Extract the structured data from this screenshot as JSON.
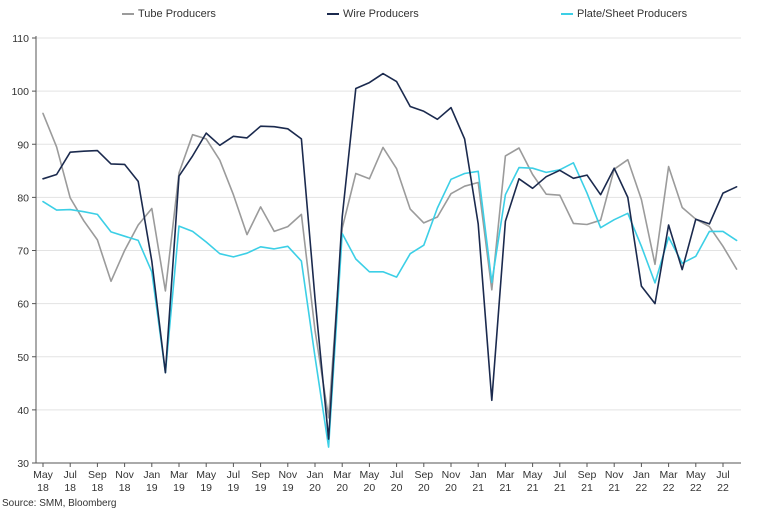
{
  "legend": {
    "tube_label": "Tube Producers",
    "wire_label": "Wire Producers",
    "plate_label": "Plate/Sheet Producers"
  },
  "source": "Source: SMM, Bloomberg",
  "colors": {
    "tube": "#9b9b9b",
    "wire": "#1b2a4e",
    "plate": "#3ccfe6",
    "axis": "#555555",
    "grid": "#e3e3e3"
  },
  "chart_data": {
    "type": "line",
    "title": "",
    "xlabel": "",
    "ylabel": "",
    "ylim": [
      30,
      110
    ],
    "yticks": [
      30,
      40,
      50,
      60,
      70,
      80,
      90,
      100,
      110
    ],
    "grid": true,
    "legend_position": "top",
    "x": [
      "May 2018",
      "Jun 2018",
      "Jul 2018",
      "Aug 2018",
      "Sep 2018",
      "Oct 2018",
      "Nov 2018",
      "Dec 2018",
      "Jan 2019",
      "Feb 2019",
      "Mar 2019",
      "Apr 2019",
      "May 2019",
      "Jun 2019",
      "Jul 2019",
      "Aug 2019",
      "Sep 2019",
      "Oct 2019",
      "Nov 2019",
      "Dec 2019",
      "Jan 2020",
      "Feb 2020",
      "Mar 2020",
      "Apr 2020",
      "May 2020",
      "Jun 2020",
      "Jul 2020",
      "Aug 2020",
      "Sep 2020",
      "Oct 2020",
      "Nov 2020",
      "Dec 2020",
      "Jan 2021",
      "Feb 2021",
      "Mar 2021",
      "Apr 2021",
      "May 2021",
      "Jun 2021",
      "Jul 2021",
      "Aug 2021",
      "Sep 2021",
      "Oct 2021",
      "Nov 2021",
      "Dec 2021",
      "Jan 2022",
      "Feb 2022",
      "Mar 2022",
      "Apr 2022",
      "May 2022",
      "Jun 2022",
      "Jul 2022",
      "Aug 2022"
    ],
    "x_tick_labels": [
      {
        "month": "May",
        "year": "18"
      },
      {
        "month": "Jul",
        "year": "18"
      },
      {
        "month": "Sep",
        "year": "18"
      },
      {
        "month": "Nov",
        "year": "18"
      },
      {
        "month": "Jan",
        "year": "19"
      },
      {
        "month": "Mar",
        "year": "19"
      },
      {
        "month": "May",
        "year": "19"
      },
      {
        "month": "Jul",
        "year": "19"
      },
      {
        "month": "Sep",
        "year": "19"
      },
      {
        "month": "Nov",
        "year": "19"
      },
      {
        "month": "Jan",
        "year": "20"
      },
      {
        "month": "Mar",
        "year": "20"
      },
      {
        "month": "May",
        "year": "20"
      },
      {
        "month": "Jul",
        "year": "20"
      },
      {
        "month": "Sep",
        "year": "20"
      },
      {
        "month": "Nov",
        "year": "20"
      },
      {
        "month": "Jan",
        "year": "21"
      },
      {
        "month": "Mar",
        "year": "21"
      },
      {
        "month": "May",
        "year": "21"
      },
      {
        "month": "Jul",
        "year": "21"
      },
      {
        "month": "Sep",
        "year": "21"
      },
      {
        "month": "Nov",
        "year": "21"
      },
      {
        "month": "Jan",
        "year": "22"
      },
      {
        "month": "Mar",
        "year": "22"
      },
      {
        "month": "May",
        "year": "22"
      },
      {
        "month": "Jul",
        "year": "22"
      }
    ],
    "series": [
      {
        "name": "Tube Producers",
        "color": "#9b9b9b",
        "values": [
          95.8,
          89.5,
          79.9,
          75.6,
          72.0,
          64.2,
          70.0,
          74.8,
          77.9,
          62.4,
          84.6,
          91.8,
          91.0,
          87.0,
          80.5,
          73.0,
          78.2,
          73.6,
          74.5,
          76.8,
          55.0,
          38.5,
          74.2,
          84.5,
          83.5,
          89.4,
          85.4,
          77.8,
          75.2,
          76.3,
          80.7,
          82.1,
          82.8,
          62.6,
          87.8,
          89.3,
          84.3,
          80.6,
          80.4,
          75.1,
          74.9,
          75.7,
          85.3,
          87.1,
          79.6,
          67.4,
          85.8,
          78.1,
          75.9,
          74.5,
          70.8,
          66.5
        ]
      },
      {
        "name": "Wire Producers",
        "color": "#1b2a4e",
        "values": [
          83.5,
          84.3,
          88.5,
          88.7,
          88.8,
          86.3,
          86.2,
          83.0,
          68.0,
          47.0,
          84.0,
          87.8,
          92.1,
          89.8,
          91.5,
          91.2,
          93.4,
          93.3,
          92.9,
          91.0,
          61.0,
          34.5,
          76.3,
          100.5,
          101.6,
          103.3,
          101.8,
          97.1,
          96.2,
          94.7,
          96.9,
          91.0,
          75.0,
          41.8,
          75.5,
          83.5,
          81.7,
          83.9,
          85.1,
          83.6,
          84.2,
          80.5,
          85.5,
          80.0,
          63.3,
          60.0,
          74.8,
          66.4,
          75.9,
          75.0,
          80.8,
          82.0
        ]
      },
      {
        "name": "Plate/Sheet Producers",
        "color": "#3ccfe6",
        "values": [
          79.2,
          77.6,
          77.7,
          77.3,
          76.8,
          73.5,
          72.7,
          71.9,
          66.0,
          47.0,
          74.6,
          73.6,
          71.6,
          69.4,
          68.8,
          69.5,
          70.7,
          70.3,
          70.8,
          68.0,
          50.0,
          33.0,
          73.2,
          68.4,
          66.0,
          66.0,
          65.0,
          69.4,
          71.0,
          78.0,
          83.4,
          84.5,
          84.9,
          64.0,
          80.5,
          85.6,
          85.5,
          84.7,
          85.2,
          86.5,
          80.8,
          74.3,
          75.8,
          77.0,
          70.8,
          63.9,
          72.5,
          67.6,
          68.9,
          73.6,
          73.6,
          71.9
        ]
      }
    ]
  }
}
